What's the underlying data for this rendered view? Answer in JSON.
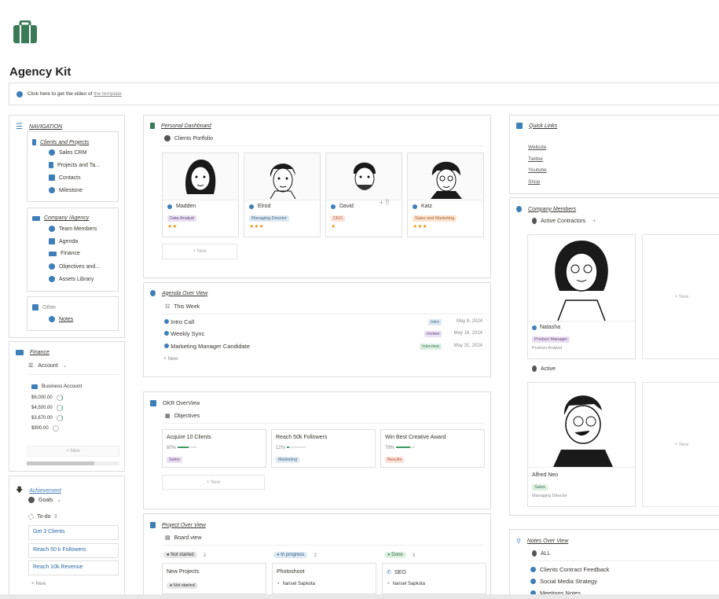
{
  "page": {
    "title": "Agency Kit",
    "video_prefix": "Click here to get the video of",
    "video_link": "the template",
    "logo_icon": "briefcase-icon",
    "accent": "#3f7fb8",
    "logo_color": "#3b7a57"
  },
  "navigation": {
    "title": "NAVIGATION",
    "group1": {
      "title": "Clients and Projects",
      "items": [
        "Sales CRM",
        "Projects and Ta...",
        "Contacts",
        "Milestone"
      ]
    },
    "group2": {
      "title": "Company /Agency",
      "items": [
        "Team Members",
        "Agenda",
        "Finance",
        "Objectives and...",
        "Assets Library"
      ]
    },
    "group3": {
      "title": "Other",
      "items": [
        "Notes"
      ]
    }
  },
  "finance": {
    "title": "Finance",
    "view": "Account",
    "card_title": "Business Account",
    "amounts": [
      "$6,000.00",
      "$4,500.00",
      "$3,670.00",
      "$900.00"
    ],
    "new_label": "New"
  },
  "achievement": {
    "title": "Achievement",
    "view": "Goals",
    "group": "To-do",
    "count": "3",
    "items": [
      "Get 3 Clients",
      "Reach 50 k Followers",
      "Reach 10k Revenue"
    ],
    "new_label": "New"
  },
  "dashboard": {
    "title": "Personal Dashboard",
    "view": "Clients Portfolio",
    "clients": [
      {
        "name": "Madden",
        "role": "Data Analyst",
        "stars": "★★"
      },
      {
        "name": "Elrod",
        "role": "Managing Director",
        "stars": "★★★"
      },
      {
        "name": "David",
        "role": "CEO",
        "stars": "★"
      },
      {
        "name": "Katz",
        "role": "Sales and Marketing",
        "stars": "★★★"
      }
    ],
    "new_label": "New"
  },
  "agenda": {
    "title": "Agenda Over View",
    "view": "This Week",
    "items": [
      {
        "name": "Intro Call",
        "tag": "Intro",
        "date": "May 8, 2024"
      },
      {
        "name": "Weekly Sync",
        "tag": "review",
        "date": "May 16, 2024"
      },
      {
        "name": "Marketing Manager Candidate",
        "tag": "Interview",
        "date": "May 31, 2024"
      }
    ],
    "new_label": "New"
  },
  "okr": {
    "title": "OKR OverView",
    "view": "Objectives",
    "items": [
      {
        "name": "Acquire 10 Clients",
        "percent": "60%",
        "progress": 0.6,
        "tag": "Sales"
      },
      {
        "name": "Reach 50k Followers",
        "percent": "12%",
        "progress": 0.12,
        "tag": "Marketing"
      },
      {
        "name": "Win Best Creative Award",
        "percent": "78%",
        "progress": 0.78,
        "tag": "Results"
      }
    ],
    "new_label": "New"
  },
  "projects": {
    "title": "Project Over View",
    "view": "Board view",
    "columns": [
      {
        "status": "Not started",
        "count": "2",
        "card": "New Projects",
        "sub": "Not started"
      },
      {
        "status": "In progress",
        "count": "2",
        "card": "Photoshoot",
        "sub": "hansel Sapkota"
      },
      {
        "status": "Done",
        "count": "3",
        "card": "SEO",
        "sub": "hansel Sapkota"
      }
    ]
  },
  "quick_links": {
    "title": "Quick Links",
    "items": [
      "Website",
      "Twitter",
      "Youtube",
      "Shop"
    ]
  },
  "members": {
    "title": "Company Members",
    "group1": "Active Contractors",
    "plus": "+",
    "member1": {
      "name": "Natasha",
      "role": "Product Manager",
      "sub": "Product Analyst"
    },
    "group2": "Active",
    "member2": {
      "name": "Alfred Neo",
      "tag": "Sales",
      "sub": "Managing Director"
    },
    "new_label": "New"
  },
  "notes": {
    "title": "Notes Over View",
    "view": "ALL",
    "items": [
      "Clients Contract Feedback",
      "Social Media Strategy",
      "Meetings Notes"
    ]
  }
}
